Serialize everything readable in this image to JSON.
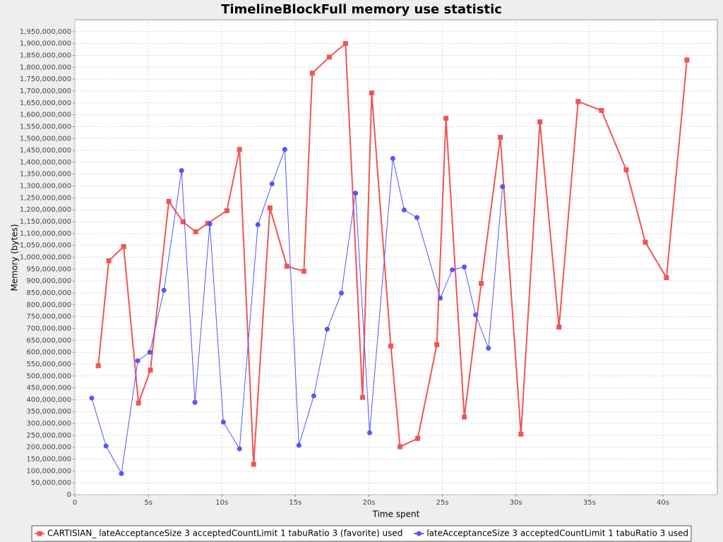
{
  "chart_data": {
    "type": "line",
    "title": "TimelineBlockFull memory use statistic",
    "x_label": "Time spent",
    "y_label": "Memory (bytes)",
    "xlim": [
      0,
      43.7
    ],
    "ylim": [
      0,
      2000000000
    ],
    "xticks": [
      0,
      {
        "value": 5,
        "label": "5s"
      },
      {
        "value": 10,
        "label": "10s"
      },
      {
        "value": 15,
        "label": "15s"
      },
      {
        "value": 20,
        "label": "20s"
      },
      {
        "value": 25,
        "label": "25s"
      },
      {
        "value": 30,
        "label": "30s"
      },
      {
        "value": 35,
        "label": "35s"
      },
      {
        "value": 40,
        "label": "40s"
      }
    ],
    "yticks": [
      0,
      {
        "value": 50000000,
        "label": "50,000,000"
      },
      {
        "value": 100000000,
        "label": "100,000,000"
      },
      {
        "value": 150000000,
        "label": "150,000,000"
      },
      {
        "value": 200000000,
        "label": "200,000,000"
      },
      {
        "value": 250000000,
        "label": "250,000,000"
      },
      {
        "value": 300000000,
        "label": "300,000,000"
      },
      {
        "value": 350000000,
        "label": "350,000,000"
      },
      {
        "value": 400000000,
        "label": "400,000,000"
      },
      {
        "value": 450000000,
        "label": "450,000,000"
      },
      {
        "value": 500000000,
        "label": "500,000,000"
      },
      {
        "value": 550000000,
        "label": "550,000,000"
      },
      {
        "value": 600000000,
        "label": "600,000,000"
      },
      {
        "value": 650000000,
        "label": "650,000,000"
      },
      {
        "value": 700000000,
        "label": "700,000,000"
      },
      {
        "value": 750000000,
        "label": "750,000,000"
      },
      {
        "value": 800000000,
        "label": "800,000,000"
      },
      {
        "value": 850000000,
        "label": "850,000,000"
      },
      {
        "value": 900000000,
        "label": "900,000,000"
      },
      {
        "value": 950000000,
        "label": "950,000,000"
      },
      {
        "value": 1000000000,
        "label": "1,000,000,000"
      },
      {
        "value": 1050000000,
        "label": "1,050,000,000"
      },
      {
        "value": 1100000000,
        "label": "1,100,000,000"
      },
      {
        "value": 1150000000,
        "label": "1,150,000,000"
      },
      {
        "value": 1200000000,
        "label": "1,200,000,000"
      },
      {
        "value": 1250000000,
        "label": "1,250,000,000"
      },
      {
        "value": 1300000000,
        "label": "1,300,000,000"
      },
      {
        "value": 1350000000,
        "label": "1,350,000,000"
      },
      {
        "value": 1400000000,
        "label": "1,400,000,000"
      },
      {
        "value": 1450000000,
        "label": "1,450,000,000"
      },
      {
        "value": 1500000000,
        "label": "1,500,000,000"
      },
      {
        "value": 1550000000,
        "label": "1,550,000,000"
      },
      {
        "value": 1600000000,
        "label": "1,600,000,000"
      },
      {
        "value": 1650000000,
        "label": "1,650,000,000"
      },
      {
        "value": 1700000000,
        "label": "1,700,000,000"
      },
      {
        "value": 1750000000,
        "label": "1,750,000,000"
      },
      {
        "value": 1800000000,
        "label": "1,800,000,000"
      },
      {
        "value": 1850000000,
        "label": "1,850,000,000"
      },
      {
        "value": 1900000000,
        "label": "1,900,000,000"
      },
      {
        "value": 1950000000,
        "label": "1,950,000,000"
      }
    ],
    "grid": true,
    "legend": "bottom",
    "series": [
      {
        "name": "CARTISIAN_ lateAcceptanceSize 3 acceptedCountLimit 1 tabuRatio 3 (favorite) used",
        "color": "#f05555",
        "marker": "square",
        "x": [
          1.59,
          2.31,
          3.32,
          4.33,
          5.14,
          6.39,
          7.36,
          8.22,
          9.04,
          10.34,
          11.2,
          12.16,
          13.27,
          14.42,
          15.58,
          16.15,
          17.31,
          18.41,
          19.57,
          20.19,
          21.49,
          22.12,
          23.32,
          24.62,
          25.24,
          26.49,
          27.64,
          28.94,
          30.34,
          31.63,
          32.93,
          34.23,
          35.82,
          37.5,
          38.8,
          40.24,
          41.63
        ],
        "values": [
          543000000,
          985000000,
          1045000000,
          386000000,
          525000000,
          1235000000,
          1149000000,
          1107000000,
          1143000000,
          1196000000,
          1454000000,
          128000000,
          1208000000,
          962000000,
          941000000,
          1775000000,
          1843000000,
          1900000000,
          410000000,
          1692000000,
          626000000,
          202000000,
          237000000,
          632000000,
          1585000000,
          327000000,
          890000000,
          1505000000,
          255000000,
          1570000000,
          706000000,
          1656000000,
          1618000000,
          1368000000,
          1063000000,
          914000000,
          1831000000
        ]
      },
      {
        "name": "lateAcceptanceSize 3 acceptedCountLimit 1 tabuRatio 3 used",
        "color": "#5555ff",
        "marker": "circle",
        "x": [
          1.15,
          2.12,
          3.17,
          4.28,
          5.1,
          6.06,
          7.26,
          8.17,
          9.18,
          10.1,
          11.2,
          12.45,
          13.41,
          14.28,
          15.24,
          16.25,
          17.16,
          18.13,
          19.09,
          20.05,
          21.63,
          22.4,
          23.27,
          24.86,
          25.67,
          26.49,
          27.26,
          28.13,
          29.09
        ],
        "values": [
          407000000,
          205000000,
          89000000,
          564000000,
          600000000,
          861000000,
          1365000000,
          389000000,
          1140000000,
          306000000,
          193000000,
          1137000000,
          1309000000,
          1454000000,
          208000000,
          416000000,
          697000000,
          849000000,
          1270000000,
          261000000,
          1416000000,
          1199000000,
          1167000000,
          828000000,
          947000000,
          959000000,
          757000000,
          617000000,
          1297000000
        ]
      }
    ]
  }
}
